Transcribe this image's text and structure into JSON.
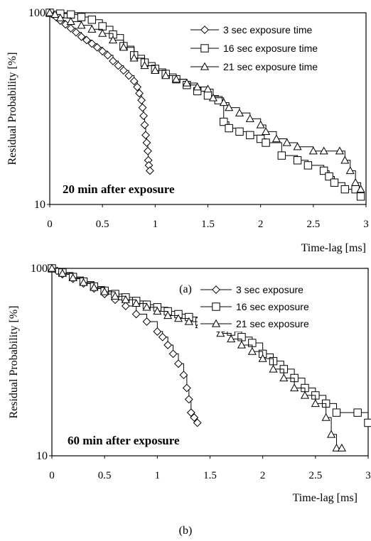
{
  "chart_data": [
    {
      "type": "line",
      "panel_label": "(a)",
      "annotation": "20 min after exposure",
      "xlabel": "Time-lag [ms]",
      "ylabel": "Residual Probability [%]",
      "xlim": [
        0,
        3
      ],
      "ylim": [
        10,
        100
      ],
      "yscale": "log",
      "x_ticks": [
        "0",
        "0.5",
        "1",
        "1.5",
        "2",
        "2.5",
        "3"
      ],
      "y_ticks": [
        "10",
        "100"
      ],
      "legend_position": "top-right",
      "series": [
        {
          "name": "3 sec exposure time",
          "marker": "diamond",
          "x": [
            0,
            0.03,
            0.06,
            0.1,
            0.15,
            0.2,
            0.25,
            0.3,
            0.35,
            0.4,
            0.45,
            0.5,
            0.55,
            0.6,
            0.65,
            0.7,
            0.75,
            0.8,
            0.83,
            0.85,
            0.87,
            0.88,
            0.89,
            0.9,
            0.91,
            0.92,
            0.93,
            0.935,
            0.94,
            0.95
          ],
          "y": [
            100,
            98,
            95,
            91,
            87,
            83,
            79,
            75,
            72,
            69,
            66,
            63,
            60,
            56,
            53,
            50,
            47,
            44,
            41,
            38,
            35,
            32,
            29,
            26,
            23,
            21,
            19,
            17,
            16,
            15
          ]
        },
        {
          "name": "16 sec exposure time",
          "marker": "square",
          "x": [
            0,
            0.1,
            0.2,
            0.3,
            0.4,
            0.5,
            0.6,
            0.7,
            0.8,
            0.9,
            1.0,
            1.1,
            1.2,
            1.3,
            1.4,
            1.5,
            1.6,
            1.65,
            1.7,
            1.8,
            1.9,
            2.0,
            2.05,
            2.2,
            2.35,
            2.45,
            2.6,
            2.65,
            2.7,
            2.8,
            2.9,
            2.95
          ],
          "y": [
            100,
            99,
            98,
            95,
            92,
            85,
            77,
            67,
            60,
            55,
            51,
            48,
            45,
            42,
            39,
            37,
            35,
            27,
            25,
            24,
            23,
            22,
            21,
            18,
            17,
            16,
            15,
            14,
            13,
            12,
            12,
            11
          ]
        },
        {
          "name": "21 sec exposure time",
          "marker": "triangle",
          "x": [
            0,
            0.05,
            0.1,
            0.2,
            0.3,
            0.4,
            0.5,
            0.6,
            0.7,
            0.8,
            0.9,
            1.0,
            1.1,
            1.2,
            1.3,
            1.4,
            1.5,
            1.55,
            1.65,
            1.7,
            1.8,
            1.9,
            2.0,
            2.05,
            2.15,
            2.25,
            2.35,
            2.5,
            2.6,
            2.75,
            2.8,
            2.85,
            2.9,
            2.95
          ],
          "y": [
            100,
            98,
            94,
            90,
            86,
            82,
            78,
            72,
            66,
            58,
            53,
            50,
            47,
            45,
            43,
            41,
            40,
            36,
            34,
            32,
            30,
            28,
            26,
            24,
            22,
            21,
            20,
            19,
            19,
            19,
            17,
            15,
            13,
            12
          ]
        }
      ]
    },
    {
      "type": "line",
      "panel_label": "(b)",
      "annotation": "60 min after exposure",
      "xlabel": "Time-lag [ms]",
      "ylabel": "Residual Probability [%]",
      "xlim": [
        0,
        3
      ],
      "ylim": [
        10,
        100
      ],
      "yscale": "log",
      "x_ticks": [
        "0",
        "0.5",
        "1",
        "1.5",
        "2",
        "2.5",
        "3"
      ],
      "y_ticks": [
        "10",
        "100"
      ],
      "legend_position": "top-right",
      "series": [
        {
          "name": "3 sec exposure",
          "marker": "diamond",
          "x": [
            0,
            0.05,
            0.1,
            0.2,
            0.3,
            0.4,
            0.5,
            0.6,
            0.7,
            0.8,
            0.9,
            1.0,
            1.05,
            1.1,
            1.15,
            1.2,
            1.25,
            1.28,
            1.3,
            1.32,
            1.35,
            1.38
          ],
          "y": [
            100,
            97,
            93,
            88,
            83,
            78,
            73,
            68,
            63,
            57,
            52,
            46,
            43,
            39,
            35,
            31,
            27,
            23,
            20,
            17,
            16,
            15
          ]
        },
        {
          "name": "16 sec exposure",
          "marker": "square",
          "x": [
            0,
            0.1,
            0.2,
            0.3,
            0.4,
            0.5,
            0.6,
            0.7,
            0.8,
            0.9,
            1.0,
            1.1,
            1.2,
            1.3,
            1.4,
            1.5,
            1.6,
            1.7,
            1.8,
            1.9,
            2.0,
            2.1,
            2.2,
            2.3,
            2.4,
            2.5,
            2.6,
            2.7,
            2.9,
            3.0
          ],
          "y": [
            100,
            95,
            90,
            85,
            80,
            76,
            73,
            70,
            67,
            64,
            62,
            59,
            57,
            55,
            52,
            50,
            48,
            46,
            43,
            40,
            35,
            32,
            29,
            26,
            23,
            21,
            19,
            17,
            17,
            15
          ]
        },
        {
          "name": "21 sec exposure",
          "marker": "triangle",
          "x": [
            0,
            0.1,
            0.2,
            0.3,
            0.4,
            0.5,
            0.6,
            0.7,
            0.8,
            0.9,
            1.0,
            1.1,
            1.2,
            1.3,
            1.4,
            1.5,
            1.6,
            1.7,
            1.8,
            1.9,
            2.0,
            2.1,
            2.2,
            2.3,
            2.4,
            2.5,
            2.6,
            2.65,
            2.7,
            2.75
          ],
          "y": [
            100,
            94,
            89,
            84,
            79,
            75,
            71,
            68,
            65,
            62,
            59,
            56,
            54,
            52,
            50,
            48,
            45,
            42,
            39,
            36,
            33,
            29,
            26,
            23,
            21,
            19,
            16,
            13,
            11,
            11
          ]
        }
      ]
    }
  ]
}
